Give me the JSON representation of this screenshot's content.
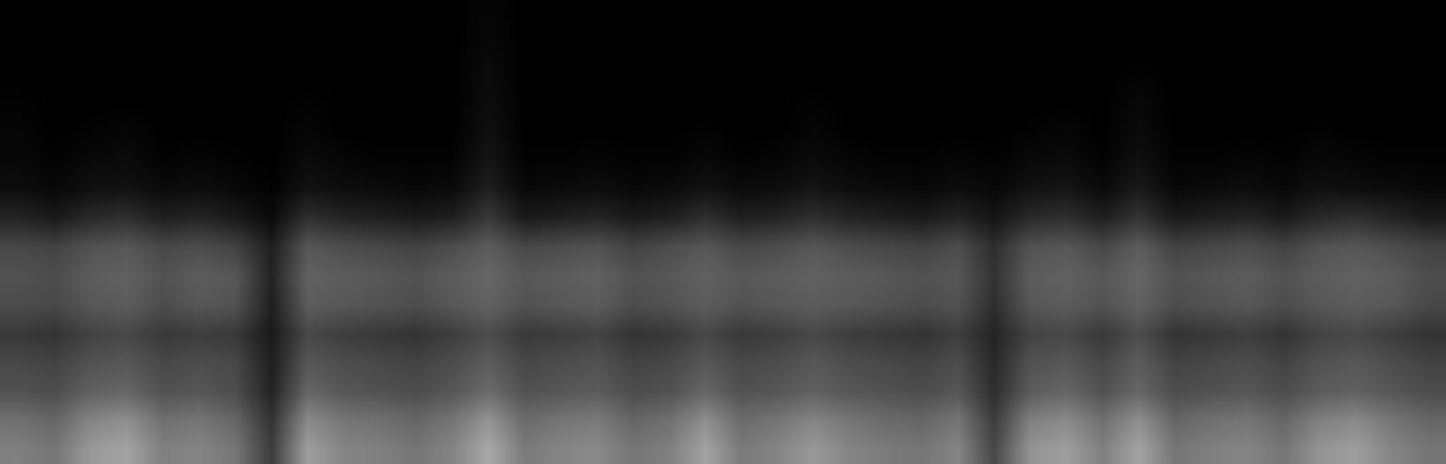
{
  "chart_data": {
    "type": "heatmap",
    "tick_labels": false,
    "grid": false,
    "zlim": [
      0,
      100
    ],
    "cells": [
      [
        0,
        0,
        0,
        0,
        0,
        0,
        0,
        0,
        0,
        0,
        0,
        0,
        0,
        2,
        0,
        0,
        0,
        0,
        0,
        0,
        0,
        0,
        0,
        0,
        0,
        0,
        0,
        0,
        0,
        0,
        0,
        0,
        0,
        0,
        0,
        0,
        0,
        0,
        0,
        0
      ],
      [
        0,
        0,
        0,
        0,
        0,
        0,
        0,
        0,
        0,
        0,
        0,
        0,
        0,
        3,
        0,
        0,
        0,
        0,
        0,
        0,
        0,
        0,
        0,
        0,
        0,
        0,
        0,
        0,
        0,
        0,
        0,
        0,
        0,
        0,
        0,
        0,
        0,
        0,
        0,
        0
      ],
      [
        0,
        0,
        0,
        0,
        0,
        0,
        0,
        0,
        0,
        0,
        0,
        0,
        0,
        4,
        0,
        0,
        0,
        0,
        0,
        0,
        0,
        0,
        0,
        0,
        0,
        0,
        0,
        0,
        0,
        0,
        0,
        1,
        0,
        0,
        0,
        0,
        0,
        0,
        0,
        0
      ],
      [
        1,
        0,
        0,
        0,
        0,
        0,
        0,
        0,
        1,
        0,
        0,
        0,
        0,
        5,
        0,
        0,
        0,
        0,
        0,
        0,
        0,
        0,
        1,
        0,
        0,
        0,
        0,
        0,
        0,
        0,
        0,
        3,
        0,
        0,
        0,
        0,
        0,
        0,
        0,
        0
      ],
      [
        2,
        0,
        1,
        2,
        0,
        0,
        0,
        0,
        2,
        0,
        0,
        0,
        0,
        6,
        0,
        0,
        0,
        0,
        0,
        1,
        0,
        0,
        2,
        0,
        0,
        0,
        0,
        0,
        1,
        2,
        0,
        4,
        0,
        0,
        0,
        0,
        1,
        0,
        0,
        0
      ],
      [
        3,
        1,
        3,
        4,
        1,
        2,
        1,
        0,
        4,
        2,
        1,
        1,
        1,
        8,
        1,
        1,
        2,
        1,
        1,
        3,
        1,
        2,
        4,
        2,
        1,
        1,
        2,
        1,
        3,
        4,
        1,
        6,
        1,
        1,
        2,
        1,
        3,
        2,
        1,
        1
      ],
      [
        5,
        3,
        6,
        7,
        4,
        5,
        3,
        1,
        7,
        5,
        4,
        3,
        4,
        12,
        3,
        4,
        5,
        3,
        4,
        7,
        4,
        5,
        8,
        5,
        4,
        3,
        5,
        3,
        7,
        8,
        4,
        10,
        3,
        4,
        5,
        3,
        6,
        5,
        4,
        3
      ],
      [
        14,
        10,
        16,
        18,
        12,
        14,
        10,
        4,
        18,
        14,
        12,
        10,
        12,
        22,
        10,
        12,
        14,
        10,
        12,
        18,
        12,
        14,
        18,
        14,
        12,
        10,
        14,
        8,
        16,
        18,
        12,
        20,
        10,
        12,
        14,
        10,
        16,
        18,
        14,
        10
      ],
      [
        28,
        26,
        32,
        34,
        28,
        30,
        26,
        12,
        34,
        30,
        28,
        26,
        30,
        36,
        28,
        30,
        32,
        26,
        30,
        34,
        28,
        30,
        34,
        30,
        28,
        26,
        30,
        18,
        32,
        34,
        28,
        36,
        26,
        28,
        30,
        26,
        32,
        34,
        30,
        26
      ],
      [
        32,
        30,
        36,
        38,
        32,
        36,
        34,
        14,
        38,
        36,
        34,
        32,
        36,
        40,
        34,
        36,
        38,
        32,
        34,
        38,
        34,
        36,
        38,
        36,
        34,
        32,
        34,
        20,
        36,
        38,
        34,
        40,
        32,
        34,
        36,
        32,
        36,
        38,
        36,
        30
      ],
      [
        30,
        28,
        34,
        36,
        30,
        34,
        32,
        12,
        36,
        34,
        32,
        30,
        34,
        38,
        32,
        34,
        36,
        30,
        32,
        36,
        32,
        34,
        36,
        34,
        32,
        30,
        32,
        18,
        34,
        36,
        32,
        38,
        30,
        32,
        34,
        30,
        34,
        36,
        34,
        28
      ],
      [
        22,
        20,
        26,
        28,
        22,
        24,
        22,
        10,
        28,
        24,
        22,
        20,
        24,
        30,
        22,
        24,
        26,
        20,
        22,
        28,
        22,
        24,
        28,
        24,
        22,
        20,
        24,
        14,
        26,
        28,
        22,
        30,
        20,
        22,
        24,
        20,
        26,
        28,
        24,
        20
      ],
      [
        28,
        26,
        32,
        34,
        28,
        30,
        28,
        12,
        34,
        30,
        28,
        26,
        30,
        36,
        28,
        30,
        32,
        26,
        28,
        34,
        28,
        30,
        34,
        30,
        28,
        26,
        30,
        16,
        32,
        34,
        28,
        36,
        26,
        28,
        30,
        26,
        32,
        34,
        30,
        26
      ],
      [
        32,
        30,
        38,
        40,
        32,
        34,
        30,
        14,
        40,
        34,
        32,
        30,
        34,
        42,
        32,
        34,
        36,
        30,
        32,
        40,
        32,
        34,
        38,
        34,
        32,
        30,
        34,
        18,
        36,
        40,
        32,
        40,
        30,
        32,
        34,
        30,
        36,
        38,
        34,
        30
      ],
      [
        44,
        40,
        52,
        56,
        44,
        46,
        40,
        20,
        54,
        46,
        44,
        40,
        46,
        58,
        42,
        46,
        48,
        40,
        44,
        56,
        42,
        46,
        52,
        46,
        42,
        40,
        46,
        24,
        50,
        54,
        44,
        56,
        40,
        44,
        46,
        40,
        50,
        54,
        46,
        40
      ],
      [
        50,
        46,
        60,
        64,
        50,
        52,
        46,
        24,
        62,
        52,
        50,
        46,
        52,
        66,
        48,
        52,
        54,
        46,
        50,
        64,
        48,
        52,
        60,
        52,
        48,
        46,
        52,
        28,
        58,
        62,
        50,
        64,
        46,
        50,
        52,
        46,
        58,
        62,
        52,
        46
      ]
    ]
  }
}
